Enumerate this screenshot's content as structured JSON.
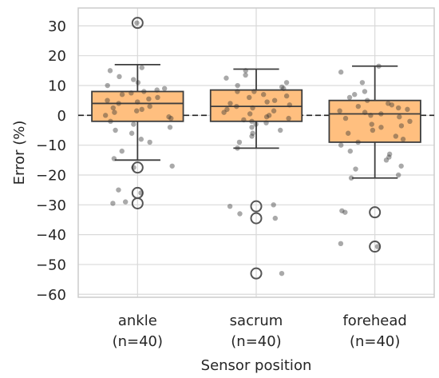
{
  "chart_data": {
    "type": "box",
    "xlabel": "Sensor position",
    "ylabel": "Error (%)",
    "ylim": [
      -61,
      36
    ],
    "yticks": [
      30,
      20,
      10,
      0,
      -10,
      -20,
      -30,
      -40,
      -50,
      -60
    ],
    "reference_line": 0,
    "grid": "horizontal",
    "colors": {
      "box_fill": "#ffbf7f",
      "box_edge": "#3d3d3d",
      "grid": "#d9d9d9",
      "spine": "#cccccc",
      "points": "#333333"
    },
    "categories": [
      {
        "name": "ankle",
        "count_label": "(n=40)",
        "q1": -2,
        "median": 4,
        "q3": 8,
        "whisker_low": -15,
        "whisker_high": 17,
        "outliers": [
          31,
          -17.5,
          -26,
          -29.5
        ],
        "points": [
          31,
          16,
          15,
          13,
          12,
          11,
          10,
          9,
          8,
          7.5,
          7,
          6,
          5.5,
          5,
          4.5,
          4,
          3,
          2.5,
          2,
          1.5,
          1,
          0,
          -0.5,
          -1,
          -2,
          -3,
          -4,
          -5,
          -6,
          -8,
          -9,
          -12,
          -14.5,
          -17,
          -17.5,
          -25,
          -26,
          -29,
          -29.5,
          8.5
        ]
      },
      {
        "name": "sacrum",
        "count_label": "(n=40)",
        "q1": -2,
        "median": 3,
        "q3": 8.5,
        "whisker_low": -11,
        "whisker_high": 15.5,
        "outliers": [
          -30.5,
          -34.5,
          -53
        ],
        "points": [
          15,
          13.5,
          12.5,
          11,
          10,
          9,
          8,
          8,
          7,
          6,
          5,
          4.5,
          4,
          3,
          2.5,
          2,
          1,
          0.5,
          0,
          -0.5,
          -1,
          -1.5,
          -2,
          -3,
          -4,
          -5,
          -6,
          -7,
          -9,
          -11,
          -30,
          -30.5,
          -33,
          -34.5,
          -53,
          3.5,
          6.5,
          9.5,
          1.5,
          -2.5
        ]
      },
      {
        "name": "forehead",
        "count_label": "(n=40)",
        "q1": -9,
        "median": 0.5,
        "q3": 5,
        "whisker_low": -21,
        "whisker_high": 16.5,
        "outliers": [
          -32.5,
          -44
        ],
        "points": [
          16.5,
          14.5,
          11,
          8,
          7,
          5,
          4,
          3.5,
          3,
          2,
          1.5,
          1,
          0.5,
          0,
          -1,
          -2,
          -3,
          -3.5,
          -4,
          -5,
          -6,
          -7,
          -8,
          -9,
          -10,
          -12,
          -13,
          -14,
          -15,
          -17,
          -18,
          -20,
          -21,
          -32,
          -32.5,
          -43,
          -44,
          2.5,
          -0.5,
          6
        ]
      }
    ]
  }
}
